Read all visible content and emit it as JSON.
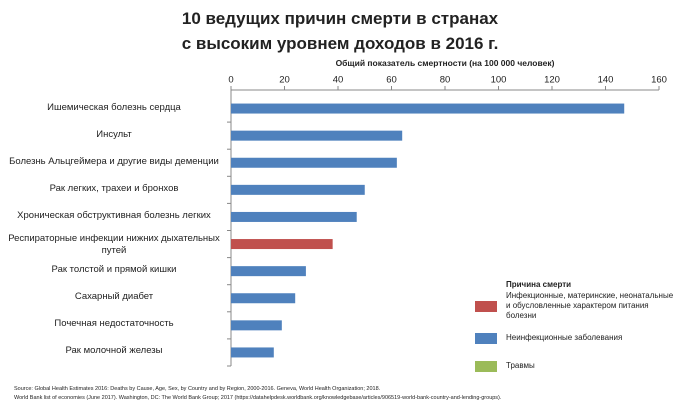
{
  "chart_data": {
    "type": "bar",
    "orientation": "horizontal",
    "title": "10 ведущих причин смерти в странах\nс высоким уровнем доходов в 2016 г.",
    "x_label": "Общий показатель смертности (на 100 000 человек)",
    "categories": [
      "Ишемическая болезнь сердца",
      "Инсульт",
      "Болезнь Альцгеймера и другие виды деменции",
      "Рак легких, трахеи и бронхов",
      "Хроническая обструктивная болезнь легких",
      "Респираторные инфекции нижних дыхательных путей",
      "Рак толстой и прямой кишки",
      "Сахарный диабет",
      "Почечная недостаточность",
      "Рак молочной железы"
    ],
    "series": [
      {
        "name": "Инфекционные, материнские, неонатальные и обусловленные характером питания болезни",
        "color": "#c0504d",
        "values": [
          null,
          null,
          null,
          null,
          null,
          38,
          null,
          null,
          null,
          null
        ]
      },
      {
        "name": "Неинфекционные заболевания",
        "color": "#4f81bd",
        "values": [
          147,
          64,
          62,
          50,
          47,
          null,
          28,
          24,
          19,
          16
        ]
      },
      {
        "name": "Травмы",
        "color": "#9bbb59",
        "values": [
          null,
          null,
          null,
          null,
          null,
          null,
          null,
          null,
          null,
          null
        ]
      }
    ],
    "legend_title": "Причина смерти",
    "legend_position": "right",
    "xlim": [
      0,
      160
    ],
    "xticks": [
      0,
      20,
      40,
      60,
      80,
      100,
      120,
      140,
      160
    ],
    "notes": [
      "Source: Global Health Estimates 2016: Deaths by Cause, Age, Sex, by Country and by Region, 2000-2016. Geneva, World Health Organization; 2018.",
      "World Bank list of economies (June 2017). Washington, DC: The World Bank Group; 2017 (https://datahelpdesk.worldbank.org/knowledgebase/articles/906519-world-bank-country-and-lending-groups)."
    ]
  }
}
